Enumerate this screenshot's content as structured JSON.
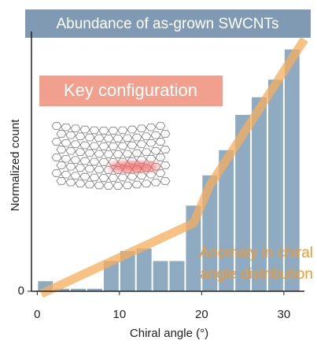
{
  "chart_data": {
    "type": "histogram",
    "title": "Abundance of as-grown SWCNTs",
    "callout": "Key configuration",
    "annotation": [
      "Anomaly in chiral",
      "angle distribution"
    ],
    "x_label": "Chiral angle (°)",
    "y_label": "Normalized count",
    "bins": [
      0,
      2,
      4,
      6,
      8,
      10,
      12,
      14,
      16,
      18,
      20,
      22,
      24,
      26,
      28,
      30,
      32
    ],
    "values": [
      0.04,
      0.01,
      0.01,
      0.01,
      0.12,
      0.16,
      0.17,
      0.12,
      0.12,
      0.34,
      0.46,
      0.56,
      0.7,
      0.77,
      0.84,
      0.96
    ],
    "color": "#8eabc2",
    "trend": {
      "x": [
        0.5,
        19,
        21,
        32.5
      ],
      "values": [
        -0.01,
        0.27,
        0.42,
        1.0
      ],
      "color": "#f6ae5c"
    },
    "xlim": [
      -0.7,
      32.5
    ],
    "ylim": [
      0,
      1
    ],
    "xticks": [
      0,
      10,
      20,
      30
    ],
    "yticks": [
      0
    ]
  }
}
